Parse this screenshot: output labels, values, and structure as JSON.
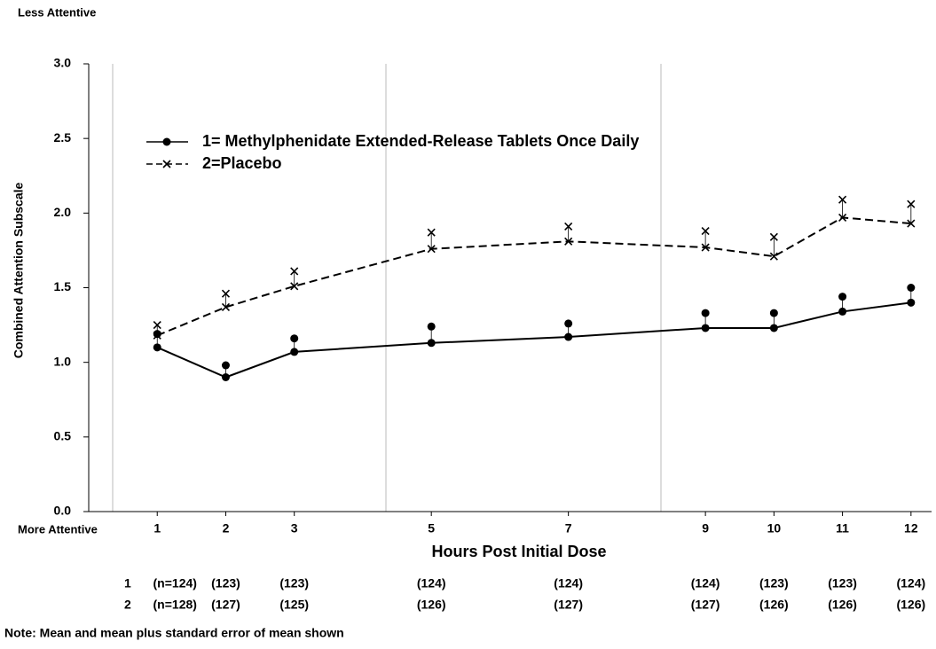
{
  "chart_data": {
    "type": "line",
    "y_label": "Combined Attention Subscale",
    "x_label": "Hours Post Initial Dose",
    "top_note": "Less Attentive",
    "bottom_note": "More Attentive",
    "x": [
      1,
      2,
      3,
      5,
      7,
      9,
      10,
      11,
      12
    ],
    "series": [
      {
        "name": "1= Methylphenidate Extended-Release Tablets Once Daily",
        "color": "#000000",
        "marker": "dot",
        "dash": false,
        "values": [
          1.1,
          0.9,
          1.07,
          1.13,
          1.17,
          1.23,
          1.23,
          1.34,
          1.4
        ],
        "errors": [
          0.09,
          0.08,
          0.09,
          0.11,
          0.09,
          0.1,
          0.1,
          0.1,
          0.1
        ]
      },
      {
        "name": "2=Placebo",
        "color": "#000000",
        "marker": "x",
        "dash": true,
        "values": [
          1.18,
          1.37,
          1.51,
          1.76,
          1.81,
          1.77,
          1.71,
          1.97,
          1.93
        ],
        "errors": [
          0.07,
          0.09,
          0.1,
          0.11,
          0.1,
          0.11,
          0.13,
          0.12,
          0.13
        ]
      }
    ],
    "xlim": [
      0,
      12.3
    ],
    "xticks": [
      1,
      2,
      3,
      5,
      7,
      9,
      10,
      11,
      12
    ],
    "ylim": [
      0,
      3
    ],
    "yticks": [
      {
        "value": 0,
        "label": "0.0"
      },
      0.5,
      {
        "value": 1,
        "label": "1.0"
      },
      1.5,
      {
        "value": 2,
        "label": "2.0"
      },
      2.5,
      {
        "value": 3,
        "label": "3.0"
      }
    ],
    "n_table": [
      {
        "label": "1",
        "values": [
          "(n=124)",
          "(123)",
          "(123)",
          "(124)",
          "(124)",
          "(124)",
          "(123)",
          "(123)",
          "(124)"
        ]
      },
      {
        "label": "2",
        "values": [
          "(n=128)",
          "(127)",
          "(125)",
          "(126)",
          "(127)",
          "(127)",
          "(126)",
          "(126)",
          "(126)"
        ]
      }
    ],
    "note": "Note:  Mean and mean plus standard error of mean shown"
  }
}
